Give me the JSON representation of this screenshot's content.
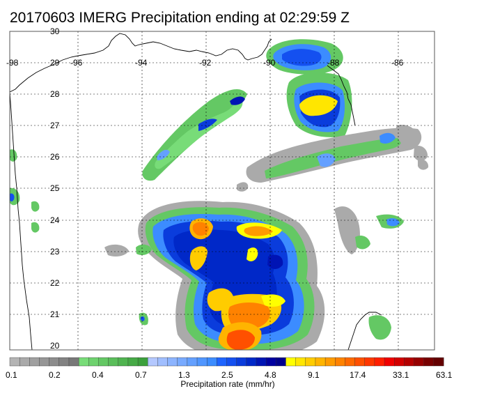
{
  "title": "20170603 IMERG Precipitation ending at 02:29:59 Z",
  "lon_labels": [
    "-98",
    "-96",
    "-94",
    "-92",
    "-90",
    "-88",
    "-86"
  ],
  "lat_labels": [
    "30",
    "29",
    "28",
    "27",
    "26",
    "25",
    "24",
    "23",
    "22",
    "21",
    "20"
  ],
  "colorbar": {
    "tick_labels": [
      "0.1",
      "0.2",
      "0.4",
      "0.7",
      "1.3",
      "2.5",
      "4.8",
      "9.1",
      "17.4",
      "33.1",
      "63.1"
    ],
    "label": "Precipitation rate (mm/hr)",
    "colors": [
      "#b4b4b4",
      "#aaaaaa",
      "#a0a0a0",
      "#969696",
      "#8c8c8c",
      "#828282",
      "#787878",
      "#78dc78",
      "#6ed26e",
      "#64c864",
      "#5abe5a",
      "#50b450",
      "#46aa46",
      "#3ca03c",
      "#b4c8ff",
      "#a0beff",
      "#8cb4ff",
      "#78aaff",
      "#64a0ff",
      "#5096ff",
      "#3c8cff",
      "#1e64ff",
      "#1450f0",
      "#0a3cdc",
      "#0028c8",
      "#0014b4",
      "#0000a0",
      "#00008c",
      "#ffff00",
      "#ffe600",
      "#ffcc00",
      "#ffb400",
      "#ff9b00",
      "#ff8200",
      "#ff6900",
      "#ff5000",
      "#ff3700",
      "#ff1e00",
      "#f00000",
      "#d20000",
      "#b40000",
      "#960000",
      "#780000",
      "#640000"
    ]
  }
}
